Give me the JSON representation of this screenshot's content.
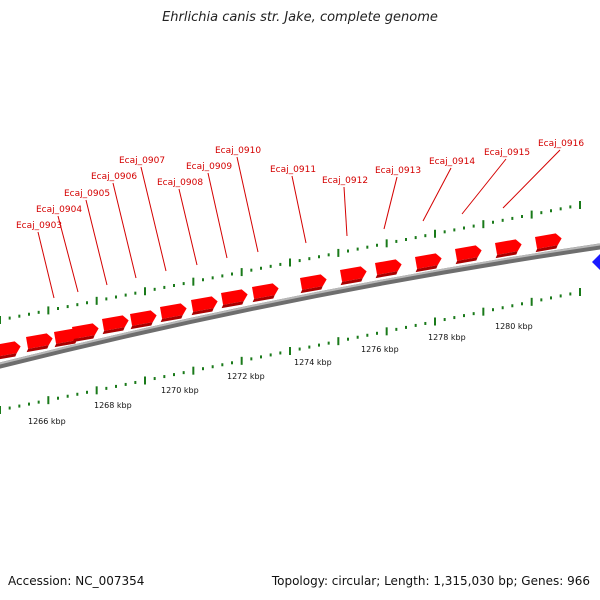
{
  "title": "Ehrlichia canis str. Jake, complete genome",
  "footer": {
    "accession": "Accession: NC_007354",
    "summary": "Topology: circular; Length: 1,315,030 bp; Genes: 966"
  },
  "genes": [
    "Ecaj_0903",
    "Ecaj_0904",
    "Ecaj_0905",
    "Ecaj_0906",
    "Ecaj_0907",
    "Ecaj_0908",
    "Ecaj_0909",
    "Ecaj_0910",
    "Ecaj_0911",
    "Ecaj_0912",
    "Ecaj_0913",
    "Ecaj_0914",
    "Ecaj_0915",
    "Ecaj_0916"
  ],
  "kbp_ticks": [
    "1266 kbp",
    "1268 kbp",
    "1270 kbp",
    "1272 kbp",
    "1274 kbp",
    "1276 kbp",
    "1278 kbp",
    "1280 kbp"
  ],
  "colors": {
    "gene": "#ff0000",
    "gene_label": "#d40000",
    "backbone": "#8a8a8a",
    "tick": "#1a7a1a",
    "strand_marker": "#1a1aff"
  }
}
